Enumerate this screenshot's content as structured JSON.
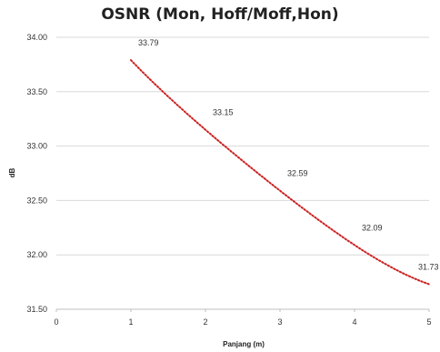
{
  "chart_data": {
    "type": "line",
    "title": "OSNR (Mon, Hoff/Moff,Hon)",
    "xlabel": "Panjang (m)",
    "ylabel": "dB",
    "xlim": [
      0,
      5
    ],
    "ylim": [
      31.5,
      34.0
    ],
    "x_ticks": [
      "0",
      "1",
      "2",
      "3",
      "4",
      "5"
    ],
    "y_ticks": [
      "31.50",
      "32.00",
      "32.50",
      "33.00",
      "33.50",
      "34.00"
    ],
    "grid": "horizontal",
    "legend": "none",
    "series": [
      {
        "color": "#cc2222",
        "line_style": "dotted",
        "x": [
          1,
          2,
          3,
          4,
          5
        ],
        "y": [
          33.79,
          33.15,
          32.59,
          32.09,
          31.73
        ],
        "labels": [
          "33.79",
          "33.15",
          "32.59",
          "32.09",
          "31.73"
        ]
      }
    ]
  }
}
